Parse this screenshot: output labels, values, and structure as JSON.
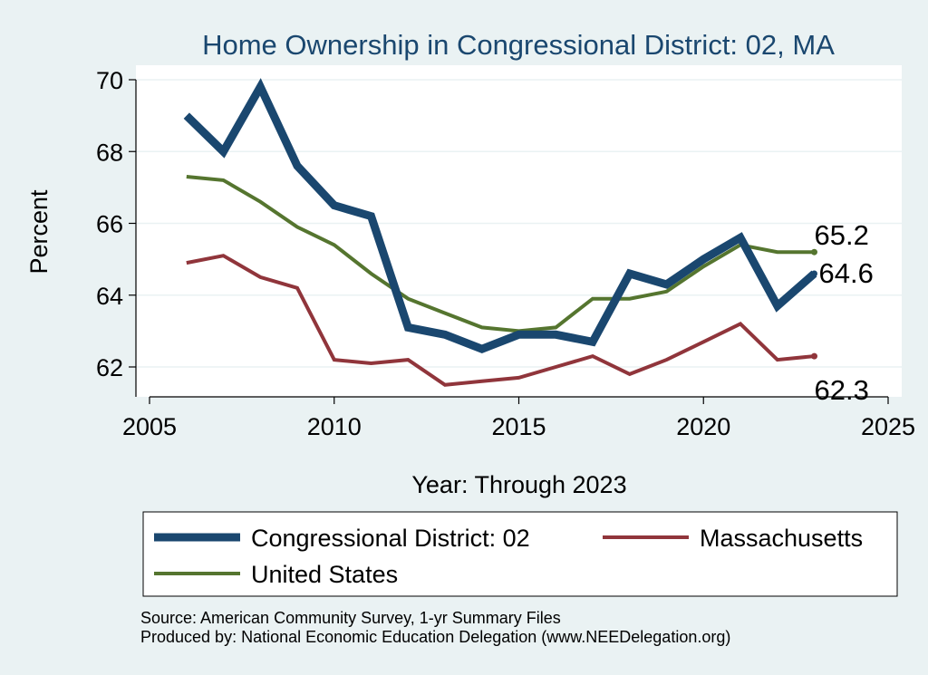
{
  "chart_data": {
    "type": "line",
    "title": "Home Ownership in Congressional District:  02, MA",
    "xlabel": "Year: Through 2023",
    "ylabel": "Percent",
    "xlim": [
      2005,
      2025
    ],
    "ylim": [
      61,
      70.5
    ],
    "xticks": [
      2005,
      2010,
      2015,
      2020,
      2025
    ],
    "yticks": [
      62,
      64,
      66,
      68,
      70
    ],
    "grid": true,
    "legend_position": "bottom",
    "series": [
      {
        "name": "Congressional District:  02",
        "color": "#1a476f",
        "x": [
          2006,
          2007,
          2008,
          2009,
          2010,
          2011,
          2012,
          2013,
          2014,
          2015,
          2016,
          2017,
          2018,
          2019,
          2020,
          2021,
          2022,
          2023
        ],
        "values": [
          69.0,
          68.0,
          69.8,
          67.6,
          66.5,
          66.2,
          63.1,
          62.9,
          62.5,
          62.9,
          62.9,
          62.7,
          64.6,
          64.3,
          65.0,
          65.6,
          63.7,
          64.6
        ],
        "end_label": "64.6"
      },
      {
        "name": "Massachusetts",
        "color": "#90353b",
        "x": [
          2006,
          2007,
          2008,
          2009,
          2010,
          2011,
          2012,
          2013,
          2014,
          2015,
          2016,
          2017,
          2018,
          2019,
          2020,
          2021,
          2022,
          2023
        ],
        "values": [
          64.9,
          65.1,
          64.5,
          64.2,
          62.2,
          62.1,
          62.2,
          61.5,
          61.6,
          61.7,
          62.0,
          62.3,
          61.8,
          62.2,
          62.7,
          63.2,
          62.2,
          62.3
        ],
        "end_label": "62.3"
      },
      {
        "name": "United States",
        "color": "#55752f",
        "x": [
          2006,
          2007,
          2008,
          2009,
          2010,
          2011,
          2012,
          2013,
          2014,
          2015,
          2016,
          2017,
          2018,
          2019,
          2020,
          2021,
          2022,
          2023
        ],
        "values": [
          67.3,
          67.2,
          66.6,
          65.9,
          65.4,
          64.6,
          63.9,
          63.5,
          63.1,
          63.0,
          63.1,
          63.9,
          63.9,
          64.1,
          64.8,
          65.4,
          65.2,
          65.2
        ],
        "end_label": "65.2"
      }
    ],
    "source_line1": "Source: American Community Survey, 1-yr Summary Files",
    "source_line2": "Produced by: National Economic Education Delegation (www.NEEDelegation.org)"
  }
}
